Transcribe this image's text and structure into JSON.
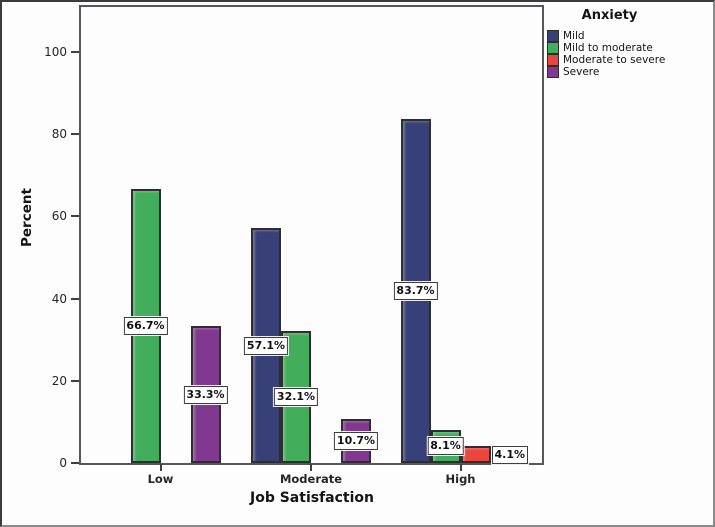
{
  "chart_data": {
    "type": "bar",
    "title": "",
    "xlabel": "Job Satisfaction",
    "ylabel": "Percent",
    "legend_title": "Anxiety",
    "legend_position": "top-right",
    "grid": false,
    "ylim": [
      0,
      110
    ],
    "yticks": [
      0,
      20,
      40,
      60,
      80,
      100
    ],
    "categories": [
      "Low",
      "Moderate",
      "High"
    ],
    "series": [
      {
        "name": "Mild",
        "color": "#374077",
        "values": [
          0,
          57.1,
          83.7
        ],
        "data_labels": [
          null,
          "57.1%",
          "83.7%"
        ]
      },
      {
        "name": "Mild to moderate",
        "color": "#42ae5c",
        "values": [
          66.7,
          32.1,
          8.1
        ],
        "data_labels": [
          "66.7%",
          "32.1%",
          "8.1%"
        ]
      },
      {
        "name": "Moderate to severe",
        "color": "#ea453d",
        "values": [
          0,
          0,
          4.1
        ],
        "data_labels": [
          null,
          null,
          "4.1%"
        ]
      },
      {
        "name": "Severe",
        "color": "#81388f",
        "values": [
          33.3,
          10.7,
          0
        ],
        "data_labels": [
          "33.3%",
          "10.7%",
          null
        ]
      }
    ]
  }
}
